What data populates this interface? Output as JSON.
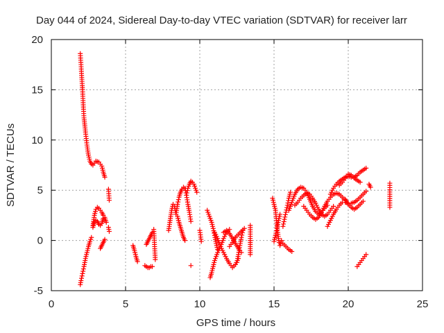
{
  "chart_data": {
    "type": "scatter",
    "title": "Day 044 of 2024, Sidereal Day-to-day VTEC variation (SDTVAR) for receiver larr",
    "xlabel": "GPS time / hours",
    "ylabel": "SDTVAR / TECUs",
    "xlim": [
      0,
      25
    ],
    "ylim": [
      -5,
      20
    ],
    "x_ticks": [
      "0",
      "5",
      "10",
      "15",
      "20",
      "25"
    ],
    "y_ticks": [
      "-5",
      "0",
      "5",
      "10",
      "15",
      "20"
    ],
    "grid": true,
    "marker": "+",
    "color": "#ff0000",
    "segments": [
      {
        "x": [
          1.95,
          2.0,
          2.05,
          2.1,
          2.15,
          2.2,
          2.3,
          2.4,
          2.5,
          2.6,
          2.7,
          2.8,
          2.9,
          3.0,
          3.2,
          3.4,
          3.5,
          3.6
        ],
        "y": [
          18.6,
          17.5,
          16.2,
          15.0,
          13.5,
          12.2,
          10.8,
          9.5,
          8.5,
          7.9,
          7.6,
          7.5,
          7.7,
          7.9,
          7.8,
          7.4,
          6.8,
          6.3
        ]
      },
      {
        "x": [
          3.85,
          3.9
        ],
        "y": [
          5.1,
          4.0
        ]
      },
      {
        "x": [
          3.85,
          3.9
        ],
        "y": [
          1.3,
          0.9
        ]
      },
      {
        "x": [
          1.95,
          2.0,
          2.1,
          2.2,
          2.3,
          2.4,
          2.5,
          2.6,
          2.7
        ],
        "y": [
          -4.4,
          -4.0,
          -3.3,
          -2.6,
          -1.8,
          -1.2,
          -0.6,
          -0.1,
          0.3
        ]
      },
      {
        "x": [
          2.8,
          2.9,
          3.0,
          3.1,
          3.2,
          3.3,
          3.4,
          3.5,
          3.6,
          3.7
        ],
        "y": [
          1.5,
          2.5,
          3.1,
          3.3,
          3.2,
          3.0,
          2.8,
          2.5,
          2.3,
          1.8
        ]
      },
      {
        "x": [
          2.8,
          2.9,
          3.0,
          3.1,
          3.2,
          3.3,
          3.4,
          3.5
        ],
        "y": [
          1.3,
          1.8,
          2.0,
          1.9,
          1.6,
          1.5,
          1.7,
          2.2
        ]
      },
      {
        "x": [
          3.3,
          3.4,
          3.5,
          3.6
        ],
        "y": [
          -0.8,
          -0.5,
          -0.2,
          0.1
        ]
      },
      {
        "x": [
          5.5,
          5.6,
          5.7,
          5.8
        ],
        "y": [
          -0.5,
          -1.0,
          -1.6,
          -2.1
        ]
      },
      {
        "x": [
          6.3,
          6.4,
          6.5,
          6.6,
          6.7,
          6.8
        ],
        "y": [
          -2.5,
          -2.6,
          -2.7,
          -2.7,
          -2.6,
          -2.6
        ]
      },
      {
        "x": [
          6.4,
          6.5,
          6.6,
          6.7,
          6.8
        ],
        "y": [
          -0.4,
          -0.1,
          0.2,
          0.5,
          0.8
        ]
      },
      {
        "x": [
          6.9,
          7.0
        ],
        "y": [
          1.1,
          -1.9
        ]
      },
      {
        "x": [
          7.9,
          8.0,
          8.1,
          8.2,
          8.3,
          8.4,
          8.5,
          8.6,
          8.7,
          8.8,
          8.9,
          9.0,
          9.1,
          9.2,
          9.3,
          9.4
        ],
        "y": [
          1.0,
          2.0,
          3.0,
          3.6,
          3.4,
          2.6,
          3.6,
          4.3,
          4.8,
          5.1,
          5.3,
          5.2,
          4.5,
          3.6,
          2.8,
          1.9
        ]
      },
      {
        "x": [
          8.5,
          8.6,
          8.7,
          8.8,
          8.9,
          9.0
        ],
        "y": [
          2.4,
          1.8,
          1.3,
          0.8,
          0.3,
          0.0
        ]
      },
      {
        "x": [
          9.1,
          9.2,
          9.3,
          9.4,
          9.5,
          9.6,
          9.7,
          9.8
        ],
        "y": [
          4.5,
          5.2,
          5.6,
          5.9,
          5.8,
          5.6,
          5.2,
          4.8
        ]
      },
      {
        "x": [
          9.4
        ],
        "y": [
          -2.5
        ]
      },
      {
        "x": [
          10.0,
          10.1
        ],
        "y": [
          1.0,
          -0.1
        ]
      },
      {
        "x": [
          10.5,
          10.6,
          10.7,
          10.8,
          10.9,
          11.0,
          11.1,
          11.2
        ],
        "y": [
          3.0,
          2.6,
          2.2,
          1.8,
          1.2,
          0.5,
          -0.3,
          -0.9
        ]
      },
      {
        "x": [
          10.7,
          10.8,
          10.9,
          11.0,
          11.2,
          11.4,
          11.6,
          11.8,
          12.0
        ],
        "y": [
          -3.7,
          -3.2,
          -2.6,
          -2.0,
          -1.2,
          -0.6,
          0.2,
          0.8,
          1.1
        ]
      },
      {
        "x": [
          11.0,
          11.2,
          11.4,
          11.6,
          11.8,
          12.0,
          12.2,
          12.4,
          12.6
        ],
        "y": [
          0.8,
          0.2,
          -0.6,
          -1.2,
          -1.8,
          -2.3,
          -2.7,
          -2.4,
          -1.8
        ]
      },
      {
        "x": [
          11.6,
          11.8,
          12.0,
          12.2,
          12.4,
          12.6,
          12.8
        ],
        "y": [
          0.8,
          1.0,
          0.7,
          0.2,
          -0.3,
          -0.8,
          -1.2
        ]
      },
      {
        "x": [
          12.0,
          12.2,
          12.4,
          12.6,
          12.8,
          13.0
        ],
        "y": [
          -0.6,
          -0.2,
          0.3,
          0.6,
          0.9,
          1.2
        ]
      },
      {
        "x": [
          12.5,
          12.6,
          12.7,
          12.8,
          12.9
        ],
        "y": [
          -2.2,
          -1.4,
          -0.5,
          0.3,
          1.0
        ]
      },
      {
        "x": [
          13.4,
          13.4,
          13.4
        ],
        "y": [
          1.5,
          0.2,
          -1.4
        ]
      },
      {
        "x": [
          14.9,
          15.0,
          15.1,
          15.15,
          15.2,
          15.25,
          15.3,
          15.35,
          15.4,
          15.5
        ],
        "y": [
          4.2,
          3.6,
          3.0,
          2.2,
          1.5,
          0.8,
          0.2,
          -0.2,
          -0.5,
          0.0
        ]
      },
      {
        "x": [
          15.0,
          15.1,
          15.2,
          15.3,
          15.4
        ],
        "y": [
          -0.1,
          0.5,
          1.2,
          2.0,
          2.6
        ]
      },
      {
        "x": [
          15.6,
          15.7,
          15.8,
          15.9,
          16.0,
          16.1
        ],
        "y": [
          1.4,
          2.1,
          2.8,
          3.5,
          4.2,
          4.8
        ]
      },
      {
        "x": [
          15.6,
          15.8,
          16.0,
          16.2
        ],
        "y": [
          -0.3,
          -0.6,
          -0.9,
          -1.1
        ]
      },
      {
        "x": [
          16.0,
          16.2,
          16.4,
          16.6,
          16.8,
          17.0,
          17.2,
          17.4,
          17.6,
          17.8,
          18.0,
          18.2,
          18.4,
          18.6
        ],
        "y": [
          3.0,
          3.8,
          4.6,
          5.1,
          5.3,
          5.2,
          4.8,
          4.1,
          3.4,
          2.9,
          2.6,
          2.8,
          3.2,
          3.5
        ]
      },
      {
        "x": [
          16.4,
          16.6,
          16.8,
          17.0,
          17.2,
          17.4,
          17.6,
          17.8,
          18.0,
          18.2,
          18.4,
          18.6,
          18.8,
          19.0
        ],
        "y": [
          3.5,
          3.8,
          4.2,
          4.5,
          4.7,
          4.6,
          4.2,
          3.7,
          3.1,
          2.6,
          2.4,
          2.6,
          3.0,
          3.4
        ]
      },
      {
        "x": [
          17.0,
          17.2,
          17.4,
          17.6,
          17.8,
          18.0,
          18.2,
          18.4,
          18.6,
          18.8,
          19.0,
          19.2,
          19.4,
          19.6,
          19.8
        ],
        "y": [
          3.4,
          3.0,
          2.6,
          2.3,
          2.1,
          2.3,
          2.8,
          3.4,
          3.9,
          4.3,
          4.6,
          4.7,
          4.6,
          4.3,
          4.0
        ]
      },
      {
        "x": [
          18.6,
          18.8,
          19.0,
          19.2,
          19.4,
          19.6,
          19.8,
          20.0,
          20.2,
          20.4,
          20.6,
          20.8,
          21.0,
          21.2
        ],
        "y": [
          1.4,
          2.0,
          2.6,
          3.1,
          3.5,
          3.8,
          3.8,
          3.7,
          3.7,
          3.8,
          4.0,
          4.3,
          4.6,
          4.9
        ]
      },
      {
        "x": [
          18.8,
          19.0,
          19.2,
          19.4,
          19.6,
          19.8,
          20.0,
          20.2,
          20.4,
          20.6,
          20.8,
          21.0,
          21.2
        ],
        "y": [
          4.6,
          5.2,
          5.6,
          5.9,
          6.1,
          6.3,
          6.4,
          6.3,
          6.3,
          6.5,
          6.8,
          7.0,
          7.2
        ]
      },
      {
        "x": [
          19.4,
          19.6,
          19.8,
          20.0,
          20.2,
          20.4,
          20.6,
          20.8
        ],
        "y": [
          5.5,
          5.8,
          6.2,
          6.6,
          6.5,
          6.2,
          6.0,
          5.8
        ]
      },
      {
        "x": [
          19.8,
          20.0,
          20.2,
          20.4,
          20.6,
          20.8,
          21.0
        ],
        "y": [
          4.1,
          3.6,
          3.3,
          3.1,
          3.3,
          3.6,
          3.9
        ]
      },
      {
        "x": [
          20.6,
          20.8,
          21.0,
          21.2
        ],
        "y": [
          -2.6,
          -2.2,
          -1.8,
          -1.4
        ]
      },
      {
        "x": [
          21.4,
          21.5
        ],
        "y": [
          5.6,
          5.3
        ]
      },
      {
        "x": [
          22.8,
          22.8,
          22.8
        ],
        "y": [
          5.7,
          4.6,
          3.3
        ]
      }
    ]
  }
}
